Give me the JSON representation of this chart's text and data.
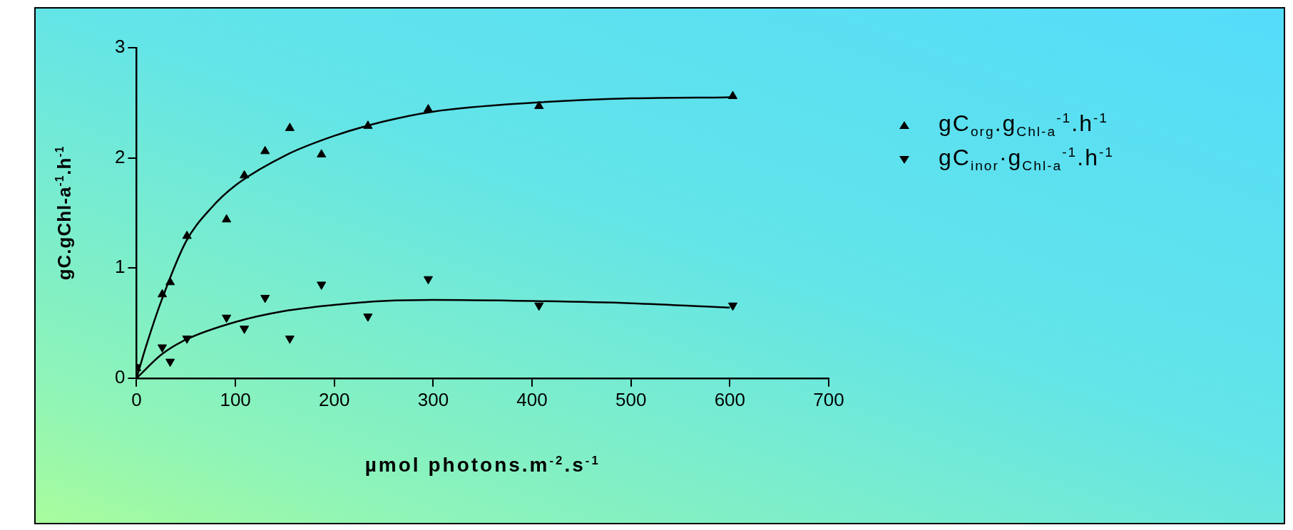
{
  "chart_data": {
    "type": "scatter",
    "xlabel": "µmol photons.m$^{-2}$.s$^{-1}$",
    "ylabel": "gC.gChl-a$^{-1}$.h$^{-1}$",
    "xlim": [
      0,
      700
    ],
    "xticks": [
      0,
      100,
      200,
      300,
      400,
      500,
      600,
      700
    ],
    "ylim": [
      0,
      3
    ],
    "yticks": [
      0,
      1,
      2,
      3
    ],
    "grid": false,
    "legend": "top right",
    "series": [
      {
        "name": "gC$_{org}$.g$_{Chl-a}$$^{-1}$.h$^{-1}$",
        "type": "scatter",
        "marker": "triangle",
        "color": "#000000",
        "x": [
          0,
          26,
          34,
          51,
          91,
          109,
          130,
          155,
          187,
          234,
          295,
          407,
          603
        ],
        "values": [
          0.09,
          0.76,
          0.87,
          1.29,
          1.44,
          1.84,
          2.06,
          2.27,
          2.03,
          2.29,
          2.44,
          2.47,
          2.56
        ]
      },
      {
        "name": "gC$_{inor}$·g$_{Chl-a}$$^{-1}$.h$^{-1}$",
        "type": "scatter",
        "marker": "triangle-down",
        "color": "#000000",
        "x": [
          0,
          26,
          34,
          51,
          91,
          109,
          130,
          155,
          187,
          234,
          295,
          407,
          603
        ],
        "values": [
          0.1,
          0.28,
          0.15,
          0.36,
          0.55,
          0.45,
          0.73,
          0.36,
          0.85,
          0.56,
          0.9,
          0.66,
          0.66
        ]
      },
      {
        "type": "line",
        "marker": "none",
        "color": "#000000",
        "x": [
          0,
          10,
          25,
          50,
          75,
          100,
          150,
          200,
          250,
          300,
          400,
          500,
          600
        ],
        "values": [
          0,
          0.3,
          0.7,
          1.24,
          1.54,
          1.75,
          2.02,
          2.2,
          2.33,
          2.42,
          2.5,
          2.54,
          2.55
        ]
      },
      {
        "type": "line",
        "marker": "none",
        "color": "#000000",
        "x": [
          0,
          26,
          50,
          100,
          150,
          200,
          250,
          300,
          400,
          500,
          600
        ],
        "values": [
          0,
          0.22,
          0.35,
          0.51,
          0.61,
          0.665,
          0.7,
          0.71,
          0.7,
          0.68,
          0.64
        ]
      }
    ]
  }
}
